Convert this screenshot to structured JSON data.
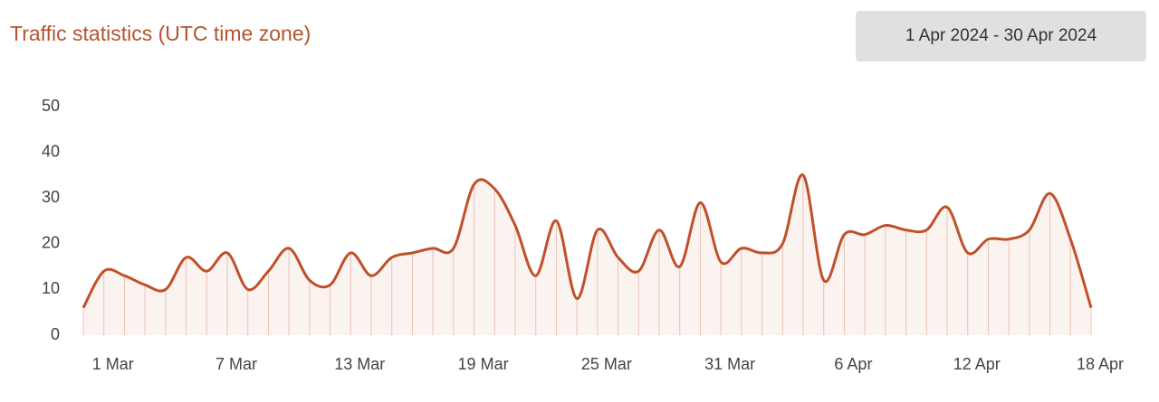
{
  "header": {
    "title": "Traffic statistics (UTC time zone)",
    "date_range": "1 Apr 2024 - 30 Apr 2024"
  },
  "chart_data": {
    "type": "line",
    "categories": [
      null,
      "1 Mar",
      null,
      null,
      null,
      null,
      null,
      "7 Mar",
      null,
      null,
      null,
      null,
      null,
      "13 Mar",
      null,
      null,
      null,
      null,
      null,
      "19 Mar",
      null,
      null,
      null,
      null,
      null,
      "25 Mar",
      null,
      null,
      null,
      null,
      null,
      "31 Mar",
      null,
      null,
      null,
      null,
      null,
      "6 Apr",
      null,
      null,
      null,
      null,
      null,
      "12 Apr",
      null,
      null,
      null,
      null,
      null,
      "18 Apr"
    ],
    "values": [
      6,
      14,
      13,
      11,
      10,
      17,
      14,
      18,
      10,
      14,
      19,
      12,
      11,
      18,
      13,
      17,
      18,
      19,
      19,
      33,
      32,
      24,
      13,
      25,
      8,
      23,
      17,
      14,
      23,
      15,
      29,
      16,
      19,
      18,
      20,
      35,
      12,
      22,
      22,
      24,
      23,
      23,
      28,
      18,
      21,
      21,
      23,
      31,
      21,
      6
    ],
    "color": "#c0502a",
    "ylim": [
      0,
      50
    ],
    "yticks": [
      0,
      10,
      20,
      30,
      40,
      50
    ],
    "grid": false
  }
}
